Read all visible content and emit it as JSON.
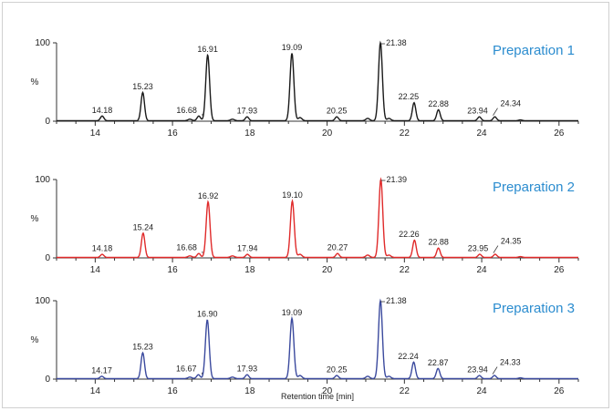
{
  "chart_data": {
    "type": "line",
    "xlabel": "Retention time [min]",
    "xlim": [
      13,
      26.5
    ],
    "x_ticks": [
      14,
      16,
      18,
      20,
      22,
      24,
      26
    ],
    "y_ticks": [
      "100",
      "0"
    ],
    "ylabel": "%",
    "ylim": [
      0,
      100
    ],
    "panels": [
      {
        "title": "Preparation 1",
        "color": "#1a1a1a",
        "title_color": "#2b8ccf",
        "peaks": [
          {
            "label": "14.18",
            "rt": 14.18,
            "height": 6
          },
          {
            "label": "15.23",
            "rt": 15.23,
            "height": 36
          },
          {
            "label": "16.68",
            "rt": 16.68,
            "height": 6
          },
          {
            "label": "16.91",
            "rt": 16.91,
            "height": 84
          },
          {
            "label": "17.93",
            "rt": 17.93,
            "height": 5
          },
          {
            "label": "19.09",
            "rt": 19.09,
            "height": 86
          },
          {
            "label": "20.25",
            "rt": 20.25,
            "height": 5
          },
          {
            "label": "21.38",
            "rt": 21.38,
            "height": 100
          },
          {
            "label": "22.25",
            "rt": 22.25,
            "height": 23
          },
          {
            "label": "22.88",
            "rt": 22.88,
            "height": 14
          },
          {
            "label": "23.94",
            "rt": 23.94,
            "height": 5
          },
          {
            "label": "24.34",
            "rt": 24.34,
            "height": 5
          }
        ]
      },
      {
        "title": "Preparation 2",
        "color": "#e02a2a",
        "title_color": "#2b8ccf",
        "peaks": [
          {
            "label": "14.18",
            "rt": 14.18,
            "height": 4
          },
          {
            "label": "15.24",
            "rt": 15.24,
            "height": 31
          },
          {
            "label": "16.68",
            "rt": 16.68,
            "height": 5
          },
          {
            "label": "16.92",
            "rt": 16.92,
            "height": 71
          },
          {
            "label": "17.94",
            "rt": 17.94,
            "height": 4
          },
          {
            "label": "19.10",
            "rt": 19.1,
            "height": 72
          },
          {
            "label": "20.27",
            "rt": 20.27,
            "height": 5
          },
          {
            "label": "21.39",
            "rt": 21.39,
            "height": 100
          },
          {
            "label": "22.26",
            "rt": 22.26,
            "height": 22
          },
          {
            "label": "22.88",
            "rt": 22.88,
            "height": 12
          },
          {
            "label": "23.95",
            "rt": 23.95,
            "height": 4
          },
          {
            "label": "24.35",
            "rt": 24.35,
            "height": 4
          }
        ]
      },
      {
        "title": "Preparation 3",
        "color": "#3b4a9e",
        "title_color": "#2b8ccf",
        "peaks": [
          {
            "label": "14.17",
            "rt": 14.17,
            "height": 3
          },
          {
            "label": "15.23",
            "rt": 15.23,
            "height": 33
          },
          {
            "label": "16.67",
            "rt": 16.67,
            "height": 5
          },
          {
            "label": "16.90",
            "rt": 16.9,
            "height": 75
          },
          {
            "label": "17.93",
            "rt": 17.93,
            "height": 5
          },
          {
            "label": "19.09",
            "rt": 19.09,
            "height": 77
          },
          {
            "label": "20.25",
            "rt": 20.25,
            "height": 4
          },
          {
            "label": "21.38",
            "rt": 21.38,
            "height": 100
          },
          {
            "label": "22.24",
            "rt": 22.24,
            "height": 21
          },
          {
            "label": "22.87",
            "rt": 22.87,
            "height": 13
          },
          {
            "label": "23.94",
            "rt": 23.94,
            "height": 4
          },
          {
            "label": "24.33",
            "rt": 24.33,
            "height": 4
          }
        ]
      }
    ]
  }
}
